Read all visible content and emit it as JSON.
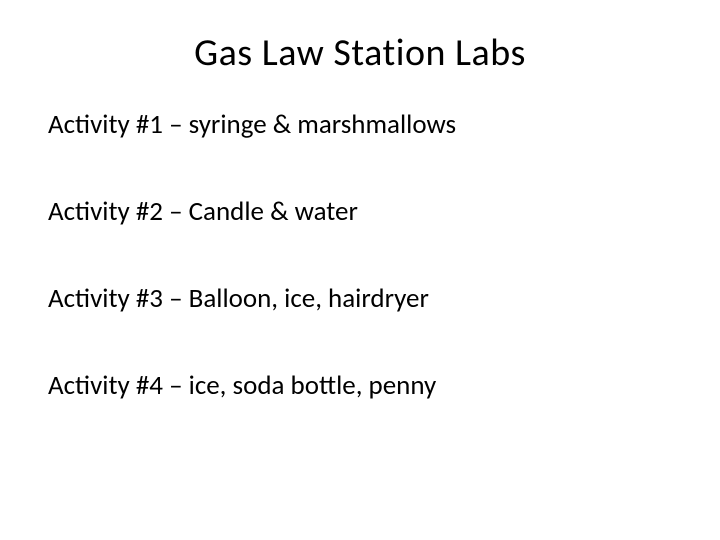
{
  "slide": {
    "title": "Gas Law Station Labs",
    "activities": [
      "Activity #1 – syringe & marshmallows",
      "Activity #2 – Candle & water",
      "Activity #3 – Balloon, ice, hairdryer",
      "Activity #4 – ice, soda bottle, penny"
    ],
    "background_color": "#ffffff",
    "text_color": "#000000",
    "title_fontsize": 38,
    "body_fontsize": 27
  }
}
